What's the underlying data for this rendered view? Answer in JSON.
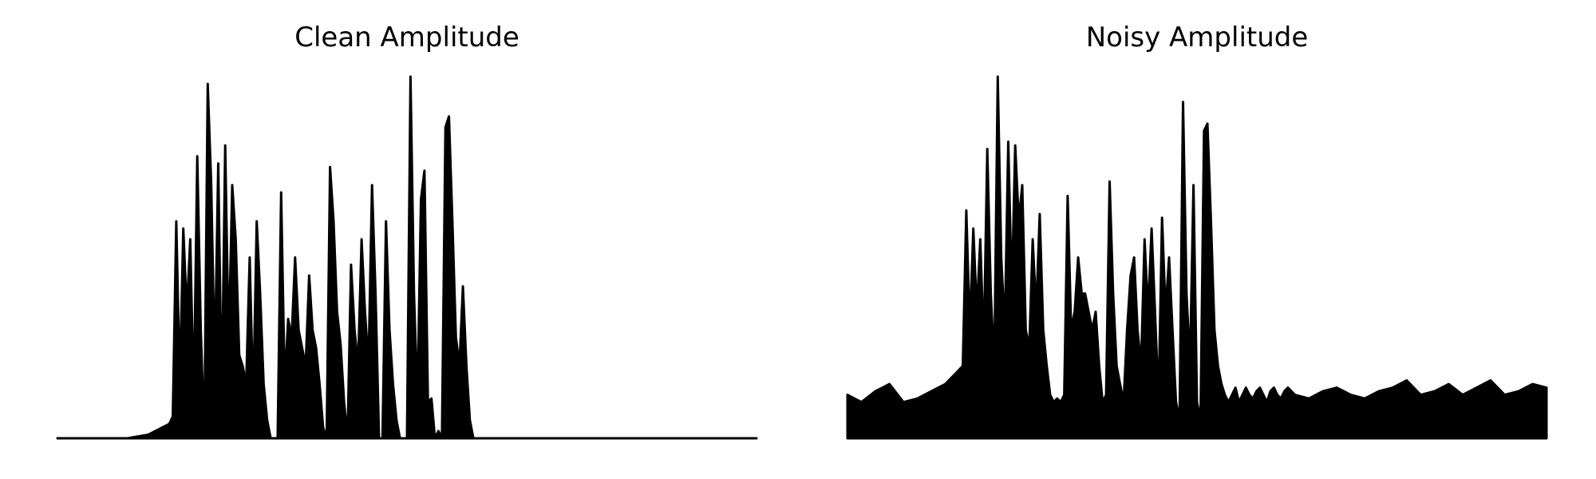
{
  "chart_data": [
    {
      "type": "area",
      "title": "Clean Amplitude",
      "xlabel": "",
      "ylabel": "",
      "axes_visible": false,
      "grid": false,
      "fill_color": "#000000",
      "line_color": "#000000",
      "ylim": [
        0,
        1.0
      ],
      "x": [
        0.0,
        0.05,
        0.1,
        0.13,
        0.14,
        0.16,
        0.165,
        0.17,
        0.175,
        0.18,
        0.185,
        0.19,
        0.195,
        0.2,
        0.205,
        0.21,
        0.215,
        0.22,
        0.225,
        0.23,
        0.235,
        0.24,
        0.245,
        0.25,
        0.255,
        0.26,
        0.265,
        0.27,
        0.275,
        0.28,
        0.285,
        0.29,
        0.295,
        0.3,
        0.305,
        0.31,
        0.315,
        0.32,
        0.325,
        0.33,
        0.335,
        0.34,
        0.345,
        0.35,
        0.355,
        0.36,
        0.365,
        0.37,
        0.375,
        0.38,
        0.385,
        0.39,
        0.395,
        0.4,
        0.405,
        0.41,
        0.415,
        0.42,
        0.425,
        0.43,
        0.435,
        0.44,
        0.445,
        0.45,
        0.455,
        0.46,
        0.465,
        0.47,
        0.475,
        0.48,
        0.485,
        0.49,
        0.495,
        0.5,
        0.505,
        0.51,
        0.515,
        0.52,
        0.525,
        0.53,
        0.535,
        0.54,
        0.545,
        0.55,
        0.555,
        0.56,
        0.565,
        0.57,
        0.575,
        0.58,
        0.585,
        0.59,
        0.595,
        0.6,
        0.605,
        0.61,
        0.615,
        0.62,
        0.625,
        0.63,
        0.635,
        0.64,
        0.645,
        0.65,
        0.655,
        0.66,
        0.665,
        0.67,
        0.675,
        0.68,
        0.685,
        0.69,
        0.695,
        0.7,
        0.705,
        0.71,
        0.715,
        0.72,
        0.725,
        0.73,
        0.735,
        0.74,
        0.745,
        0.75,
        0.755,
        0.76,
        0.765,
        0.77,
        0.775,
        0.78,
        0.785,
        0.79,
        0.8,
        0.85,
        0.9,
        0.95,
        1.0
      ],
      "values": [
        0.0,
        0.0,
        0.0,
        0.01,
        0.02,
        0.04,
        0.06,
        0.6,
        0.15,
        0.58,
        0.35,
        0.55,
        0.1,
        0.78,
        0.3,
        0.0,
        0.98,
        0.7,
        0.2,
        0.76,
        0.1,
        0.81,
        0.25,
        0.7,
        0.55,
        0.23,
        0.2,
        0.15,
        0.5,
        0.1,
        0.6,
        0.4,
        0.15,
        0.05,
        0.0,
        0.0,
        0.0,
        0.68,
        0.15,
        0.33,
        0.28,
        0.5,
        0.3,
        0.25,
        0.2,
        0.45,
        0.3,
        0.25,
        0.15,
        0.03,
        0.0,
        0.75,
        0.6,
        0.35,
        0.26,
        0.1,
        0.0,
        0.48,
        0.3,
        0.2,
        0.55,
        0.35,
        0.2,
        0.7,
        0.4,
        0.0,
        0.0,
        0.6,
        0.3,
        0.15,
        0.05,
        0.0,
        0.0,
        0.0,
        1.0,
        0.4,
        0.1,
        0.66,
        0.74,
        0.1,
        0.11,
        0.0,
        0.02,
        0.0,
        0.86,
        0.89,
        0.6,
        0.28,
        0.2,
        0.42,
        0.2,
        0.05,
        0.0,
        0.0,
        0.0,
        0.0,
        0.0,
        0.0,
        0.0,
        0.0,
        0.0,
        0.0,
        0.0,
        0.0,
        0.0,
        0.0,
        0.0,
        0.0,
        0.0,
        0.0,
        0.0,
        0.0,
        0.0,
        0.0,
        0.0,
        0.0,
        0.0,
        0.0,
        0.0,
        0.0,
        0.0,
        0.0,
        0.0,
        0.0,
        0.0,
        0.0,
        0.0,
        0.0,
        0.0,
        0.0,
        0.0,
        0.0,
        0.0,
        0.0,
        0.0,
        0.0,
        0.0
      ]
    },
    {
      "type": "area",
      "title": "Noisy Amplitude",
      "xlabel": "",
      "ylabel": "",
      "axes_visible": false,
      "grid": false,
      "fill_color": "#000000",
      "line_color": "#000000",
      "ylim": [
        0,
        1.0
      ],
      "x": [
        0.0,
        0.02,
        0.04,
        0.06,
        0.08,
        0.1,
        0.12,
        0.14,
        0.155,
        0.165,
        0.17,
        0.175,
        0.18,
        0.185,
        0.19,
        0.195,
        0.2,
        0.205,
        0.21,
        0.215,
        0.22,
        0.225,
        0.23,
        0.235,
        0.24,
        0.245,
        0.25,
        0.255,
        0.26,
        0.265,
        0.27,
        0.275,
        0.28,
        0.285,
        0.29,
        0.295,
        0.3,
        0.305,
        0.31,
        0.315,
        0.32,
        0.325,
        0.33,
        0.335,
        0.34,
        0.345,
        0.35,
        0.355,
        0.36,
        0.365,
        0.37,
        0.375,
        0.38,
        0.385,
        0.39,
        0.395,
        0.4,
        0.405,
        0.41,
        0.415,
        0.42,
        0.425,
        0.43,
        0.435,
        0.44,
        0.445,
        0.45,
        0.455,
        0.46,
        0.465,
        0.47,
        0.475,
        0.48,
        0.485,
        0.49,
        0.495,
        0.5,
        0.505,
        0.51,
        0.515,
        0.52,
        0.525,
        0.53,
        0.535,
        0.54,
        0.545,
        0.55,
        0.555,
        0.56,
        0.565,
        0.57,
        0.575,
        0.58,
        0.585,
        0.59,
        0.595,
        0.6,
        0.605,
        0.61,
        0.615,
        0.62,
        0.625,
        0.63,
        0.64,
        0.66,
        0.68,
        0.7,
        0.72,
        0.74,
        0.76,
        0.78,
        0.8,
        0.82,
        0.84,
        0.86,
        0.88,
        0.9,
        0.92,
        0.94,
        0.96,
        0.98,
        1.0
      ],
      "values": [
        0.12,
        0.1,
        0.13,
        0.15,
        0.1,
        0.11,
        0.13,
        0.15,
        0.18,
        0.2,
        0.63,
        0.3,
        0.58,
        0.35,
        0.55,
        0.25,
        0.8,
        0.4,
        0.2,
        1.0,
        0.5,
        0.3,
        0.82,
        0.4,
        0.81,
        0.6,
        0.7,
        0.3,
        0.25,
        0.55,
        0.35,
        0.62,
        0.3,
        0.2,
        0.12,
        0.1,
        0.11,
        0.1,
        0.12,
        0.67,
        0.3,
        0.35,
        0.5,
        0.4,
        0.4,
        0.35,
        0.3,
        0.35,
        0.2,
        0.1,
        0.12,
        0.71,
        0.4,
        0.2,
        0.15,
        0.1,
        0.3,
        0.45,
        0.5,
        0.3,
        0.2,
        0.55,
        0.35,
        0.58,
        0.35,
        0.1,
        0.61,
        0.35,
        0.5,
        0.3,
        0.1,
        0.05,
        0.93,
        0.4,
        0.2,
        0.7,
        0.1,
        0.05,
        0.85,
        0.87,
        0.6,
        0.3,
        0.2,
        0.15,
        0.12,
        0.1,
        0.12,
        0.14,
        0.1,
        0.12,
        0.14,
        0.12,
        0.11,
        0.13,
        0.14,
        0.12,
        0.1,
        0.13,
        0.14,
        0.12,
        0.11,
        0.13,
        0.14,
        0.12,
        0.11,
        0.13,
        0.14,
        0.12,
        0.11,
        0.13,
        0.14,
        0.16,
        0.12,
        0.13,
        0.15,
        0.12,
        0.14,
        0.16,
        0.12,
        0.13,
        0.15,
        0.14
      ]
    }
  ]
}
